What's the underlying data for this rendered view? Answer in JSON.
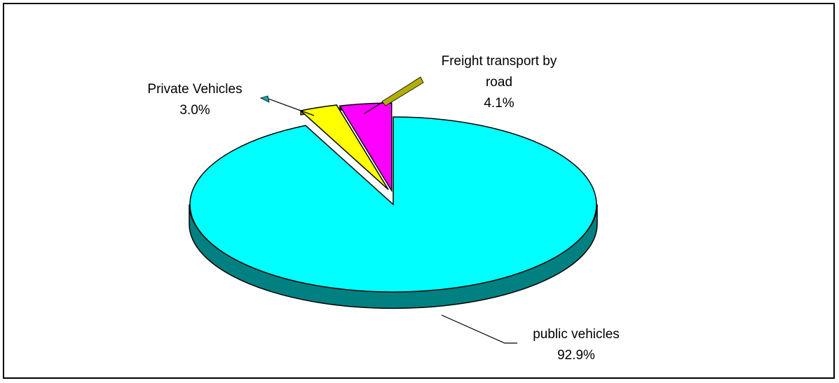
{
  "chart_data": {
    "type": "pie",
    "style": "3d-exploded",
    "slices": [
      {
        "label": "public vehicles",
        "value": 92.9,
        "value_text": "92.9%",
        "color": "#00ffff",
        "side_color": "#008080"
      },
      {
        "label": "Private Vehicles",
        "value": 3.0,
        "value_text": "3.0%",
        "color": "#ffff00",
        "side_color": "#808000"
      },
      {
        "label": "Freight transport by road",
        "label_lines": [
          "Freight transport by",
          "road"
        ],
        "value": 4.1,
        "value_text": "4.1%",
        "color": "#ff00ff",
        "side_color": "#800080"
      }
    ],
    "legend": "none",
    "data_labels": "outside with leader lines"
  }
}
